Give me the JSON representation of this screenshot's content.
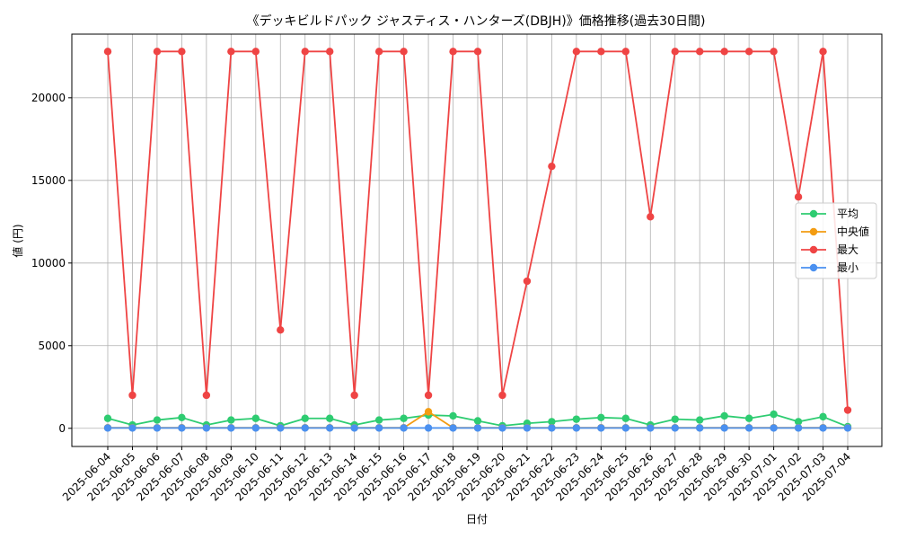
{
  "chart_data": {
    "type": "line",
    "title": "《デッキビルドパック ジャスティス・ハンターズ(DBJH)》価格推移(過去30日間)",
    "xlabel": "日付",
    "ylabel": "値 (円)",
    "ylim": [
      -1100,
      23850
    ],
    "yticks": [
      0,
      5000,
      10000,
      15000,
      20000
    ],
    "grid": true,
    "legend_position": "right",
    "x": [
      "2025-06-04",
      "2025-06-05",
      "2025-06-06",
      "2025-06-07",
      "2025-06-08",
      "2025-06-09",
      "2025-06-10",
      "2025-06-11",
      "2025-06-12",
      "2025-06-13",
      "2025-06-14",
      "2025-06-15",
      "2025-06-16",
      "2025-06-17",
      "2025-06-18",
      "2025-06-19",
      "2025-06-20",
      "2025-06-21",
      "2025-06-22",
      "2025-06-23",
      "2025-06-24",
      "2025-06-25",
      "2025-06-26",
      "2025-06-27",
      "2025-06-28",
      "2025-06-29",
      "2025-06-30",
      "2025-07-01",
      "2025-07-02",
      "2025-07-03",
      "2025-07-04"
    ],
    "series": [
      {
        "name": "平均",
        "color": "#2ecc71",
        "values": [
          600,
          200,
          500,
          650,
          200,
          500,
          600,
          150,
          600,
          600,
          200,
          500,
          600,
          800,
          750,
          450,
          150,
          300,
          400,
          550,
          650,
          600,
          200,
          550,
          500,
          750,
          600,
          850,
          400,
          700,
          100
        ]
      },
      {
        "name": "中央値",
        "color": "#f39c12",
        "values": [
          30,
          30,
          30,
          30,
          30,
          30,
          30,
          30,
          30,
          30,
          30,
          30,
          30,
          1000,
          30,
          30,
          30,
          30,
          30,
          30,
          30,
          30,
          30,
          30,
          30,
          30,
          30,
          30,
          30,
          30,
          30
        ]
      },
      {
        "name": "最大",
        "color": "#ef4444",
        "values": [
          22800,
          2000,
          22800,
          22800,
          2000,
          22800,
          22800,
          5950,
          22800,
          22800,
          2000,
          22800,
          22800,
          2000,
          22800,
          22800,
          2000,
          8900,
          15850,
          22800,
          22800,
          22800,
          12800,
          22800,
          22800,
          22800,
          22800,
          22800,
          14000,
          22800,
          1100
        ]
      },
      {
        "name": "最小",
        "color": "#4a90f0",
        "values": [
          20,
          20,
          20,
          20,
          20,
          20,
          20,
          20,
          20,
          20,
          20,
          20,
          20,
          20,
          20,
          20,
          20,
          20,
          20,
          20,
          20,
          20,
          20,
          20,
          20,
          20,
          20,
          20,
          20,
          20,
          20
        ]
      }
    ]
  }
}
